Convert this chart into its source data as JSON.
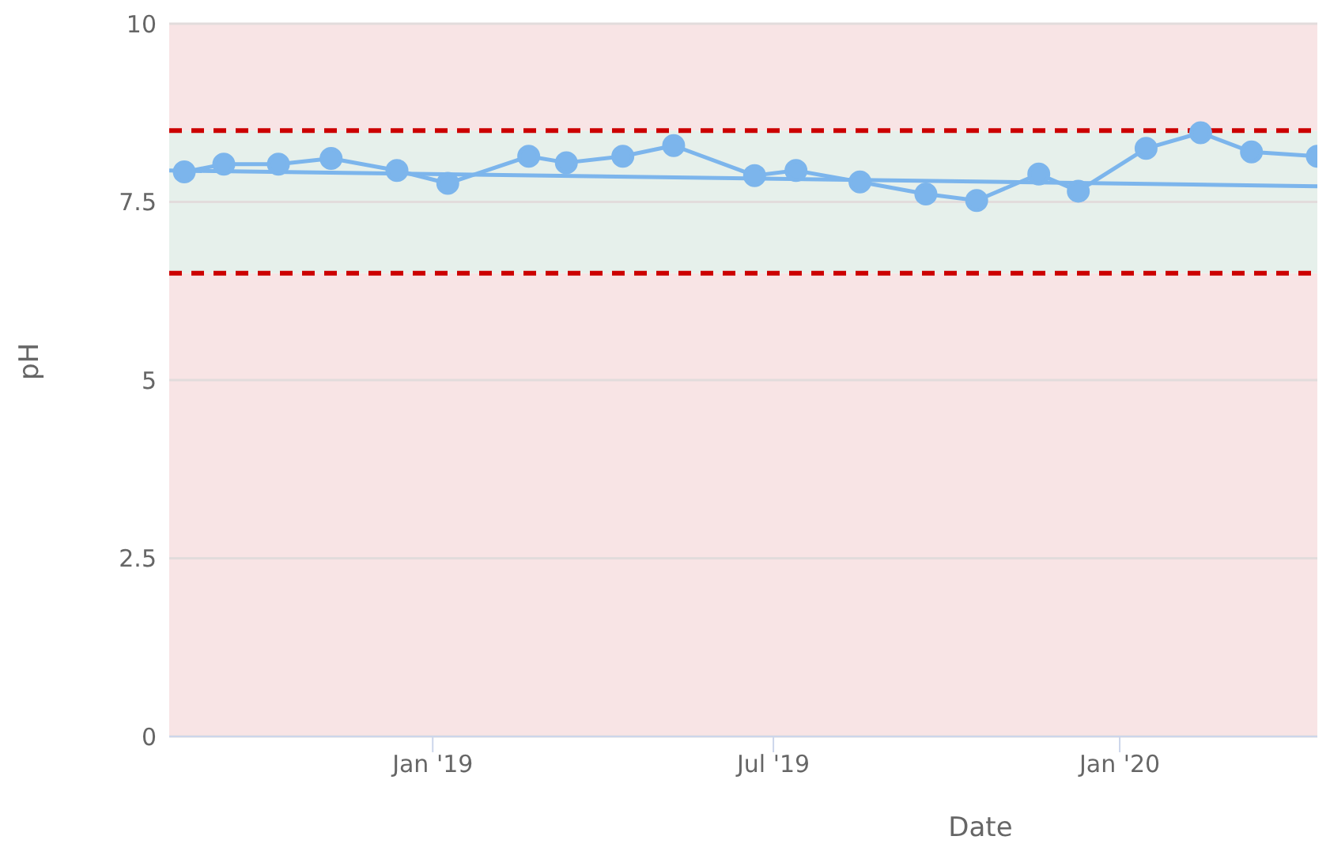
{
  "chart_data": {
    "type": "line",
    "xlabel": "Date",
    "ylabel": "pH",
    "x": [
      "2018-08-22",
      "2018-09-12",
      "2018-10-11",
      "2018-11-08",
      "2018-12-13",
      "2019-01-09",
      "2019-02-21",
      "2019-03-13",
      "2019-04-12",
      "2019-05-09",
      "2019-06-21",
      "2019-07-13",
      "2019-08-16",
      "2019-09-20",
      "2019-10-17",
      "2019-11-19",
      "2019-12-10",
      "2020-01-15",
      "2020-02-13",
      "2020-03-11",
      "2020-04-15"
    ],
    "series": [
      {
        "color": "#7cb5ec",
        "values": [
          7.92,
          8.03,
          8.03,
          8.11,
          7.94,
          7.76,
          8.14,
          8.05,
          8.14,
          8.29,
          7.87,
          7.94,
          7.78,
          7.61,
          7.52,
          7.89,
          7.65,
          8.25,
          8.47,
          8.2,
          8.14
        ]
      },
      {
        "type": "line",
        "color": "#7cb5ec",
        "marker": "none",
        "x": [
          "2018-08-14",
          "2020-04-15"
        ],
        "values": [
          7.94,
          7.72
        ]
      }
    ],
    "xlim": [
      "2018-08-14",
      "2020-04-15"
    ],
    "xticks": [
      {
        "value": "2019-01-01",
        "label": "Jan '19"
      },
      {
        "value": "2019-07-01",
        "label": "Jul '19"
      },
      {
        "value": "2020-01-01",
        "label": "Jan '20"
      }
    ],
    "ylim": [
      0,
      10
    ],
    "yticks": [
      0,
      2.5,
      5,
      7.5,
      10
    ],
    "bands": [
      {
        "axis": "y",
        "from": 0,
        "to": 6.5,
        "color": "#f8e4e5"
      },
      {
        "axis": "y",
        "from": 6.5,
        "to": 8.5,
        "color": "#e6f0eb"
      },
      {
        "axis": "y",
        "from": 8.5,
        "to": 10,
        "color": "#f8e4e5"
      }
    ],
    "ref_lines": [
      {
        "axis": "y",
        "value": 8.5,
        "color": "#cc0000",
        "line_style": "dashed"
      },
      {
        "axis": "y",
        "value": 6.5,
        "color": "#cc0000",
        "line_style": "dashed"
      }
    ],
    "grid": "y",
    "marker": "circle"
  }
}
